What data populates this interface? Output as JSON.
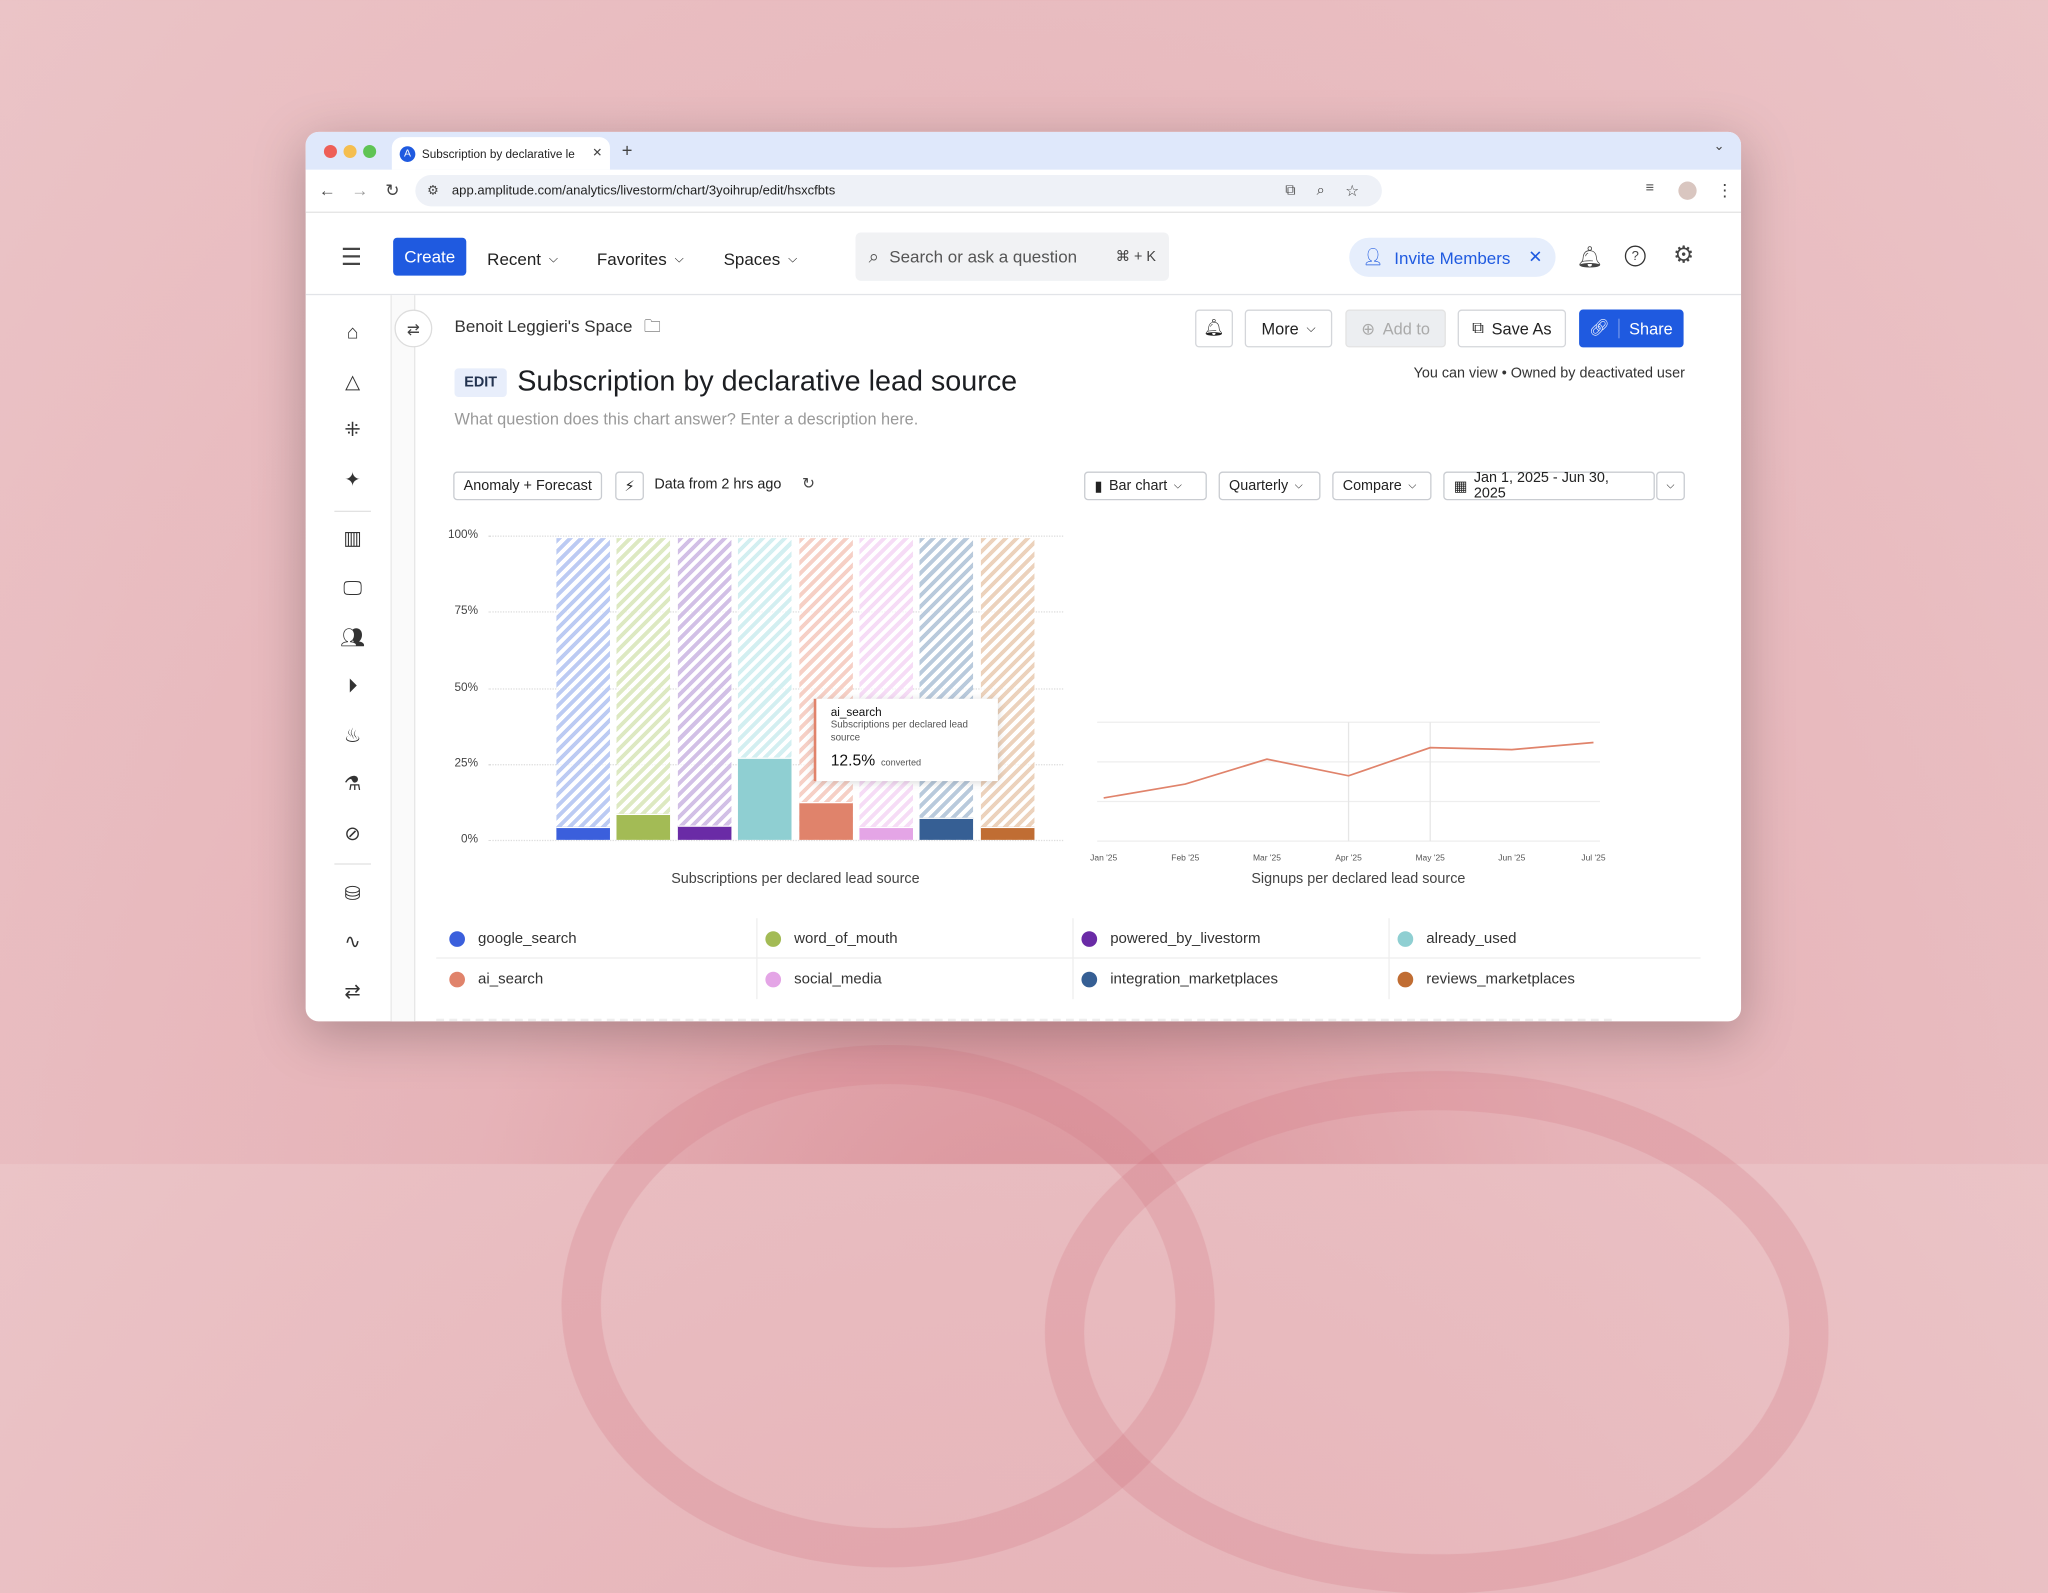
{
  "browser": {
    "tab_title": "Subscription by declarative le",
    "url": "app.amplitude.com/analytics/livestorm/chart/3yoihrup/edit/hsxcfbts"
  },
  "header": {
    "create": "Create",
    "recent": "Recent",
    "favorites": "Favorites",
    "spaces": "Spaces",
    "search_placeholder": "Search or ask a question",
    "search_shortcut": "⌘ + K",
    "invite": "Invite Members"
  },
  "page": {
    "breadcrumb": "Benoit Leggieri's Space",
    "edit_badge": "EDIT",
    "title": "Subscription by declarative lead source",
    "description_placeholder": "What question does this chart answer? Enter a description here.",
    "permissions": "You can view • Owned by deactivated user",
    "actions": {
      "more": "More",
      "add_to": "Add to",
      "save_as": "Save As",
      "share": "Share"
    }
  },
  "toolbar": {
    "anomaly": "Anomaly + Forecast",
    "data_freshness": "Data from 2 hrs ago",
    "chart_type": "Bar chart",
    "interval": "Quarterly",
    "compare": "Compare",
    "date_range": "Jan 1, 2025 - Jun 30, 2025"
  },
  "tooltip": {
    "series": "ai_search",
    "metric": "Subscriptions per declared lead source",
    "value": "12.5%",
    "suffix": "converted"
  },
  "chart_data": [
    {
      "type": "bar",
      "title": "Subscriptions per declared lead source",
      "ylim": [
        0,
        100
      ],
      "yticks": [
        "0%",
        "25%",
        "50%",
        "75%",
        "100%"
      ],
      "grid": true,
      "categories": [
        "google_search",
        "word_of_mouth",
        "powered_by_livestorm",
        "already_used",
        "ai_search",
        "social_media",
        "integration_marketplaces",
        "reviews_marketplaces"
      ],
      "values": [
        4.4,
        8.4,
        4.9,
        27.2,
        12.5,
        4.3,
        7.5,
        4.4
      ],
      "colors": [
        "#3b5fdc",
        "#a3bb55",
        "#6a2ba6",
        "#8fcfd2",
        "#e0836b",
        "#e4a5e6",
        "#365f94",
        "#c06d33"
      ],
      "hatch_colors": [
        "#bccbf3",
        "#dde9c2",
        "#d2c0e6",
        "#d3eff1",
        "#f6d0c6",
        "#f6dcf6",
        "#b9cadc",
        "#ecd2bc"
      ]
    },
    {
      "type": "line",
      "title": "Signups per declared lead source",
      "x": [
        "Jan '25",
        "Feb '25",
        "Mar '25",
        "Apr '25",
        "May '25",
        "Jun '25",
        "Jul '25"
      ],
      "values": [
        1.09,
        1.44,
        2.07,
        1.65,
        2.36,
        2.31,
        2.49
      ],
      "ylim": [
        0,
        3
      ],
      "grid": true,
      "color": "#e0836b"
    }
  ],
  "legend": [
    "google_search",
    "word_of_mouth",
    "powered_by_livestorm",
    "already_used",
    "ai_search",
    "social_media",
    "integration_marketplaces",
    "reviews_marketplaces"
  ]
}
